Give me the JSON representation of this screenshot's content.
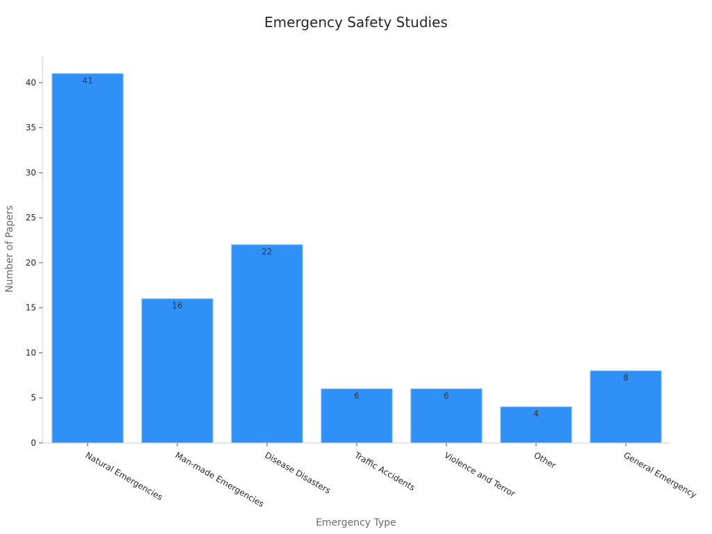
{
  "chart_data": {
    "type": "bar",
    "title": "Emergency Safety Studies",
    "xlabel": "Emergency Type",
    "ylabel": "Number of Papers",
    "categories": [
      "Natural Emergencies",
      "Man-made Emergencies",
      "Disease Disasters",
      "Traffic Accidents",
      "Violence and Terror",
      "Other",
      "General Emergency"
    ],
    "values": [
      41,
      16,
      22,
      6,
      6,
      4,
      8
    ],
    "ylim": [
      0,
      43
    ],
    "yticks": [
      0,
      5,
      10,
      15,
      20,
      25,
      30,
      35,
      40
    ],
    "grid": false,
    "legend": "none",
    "bar_color": "#2f91f7"
  }
}
